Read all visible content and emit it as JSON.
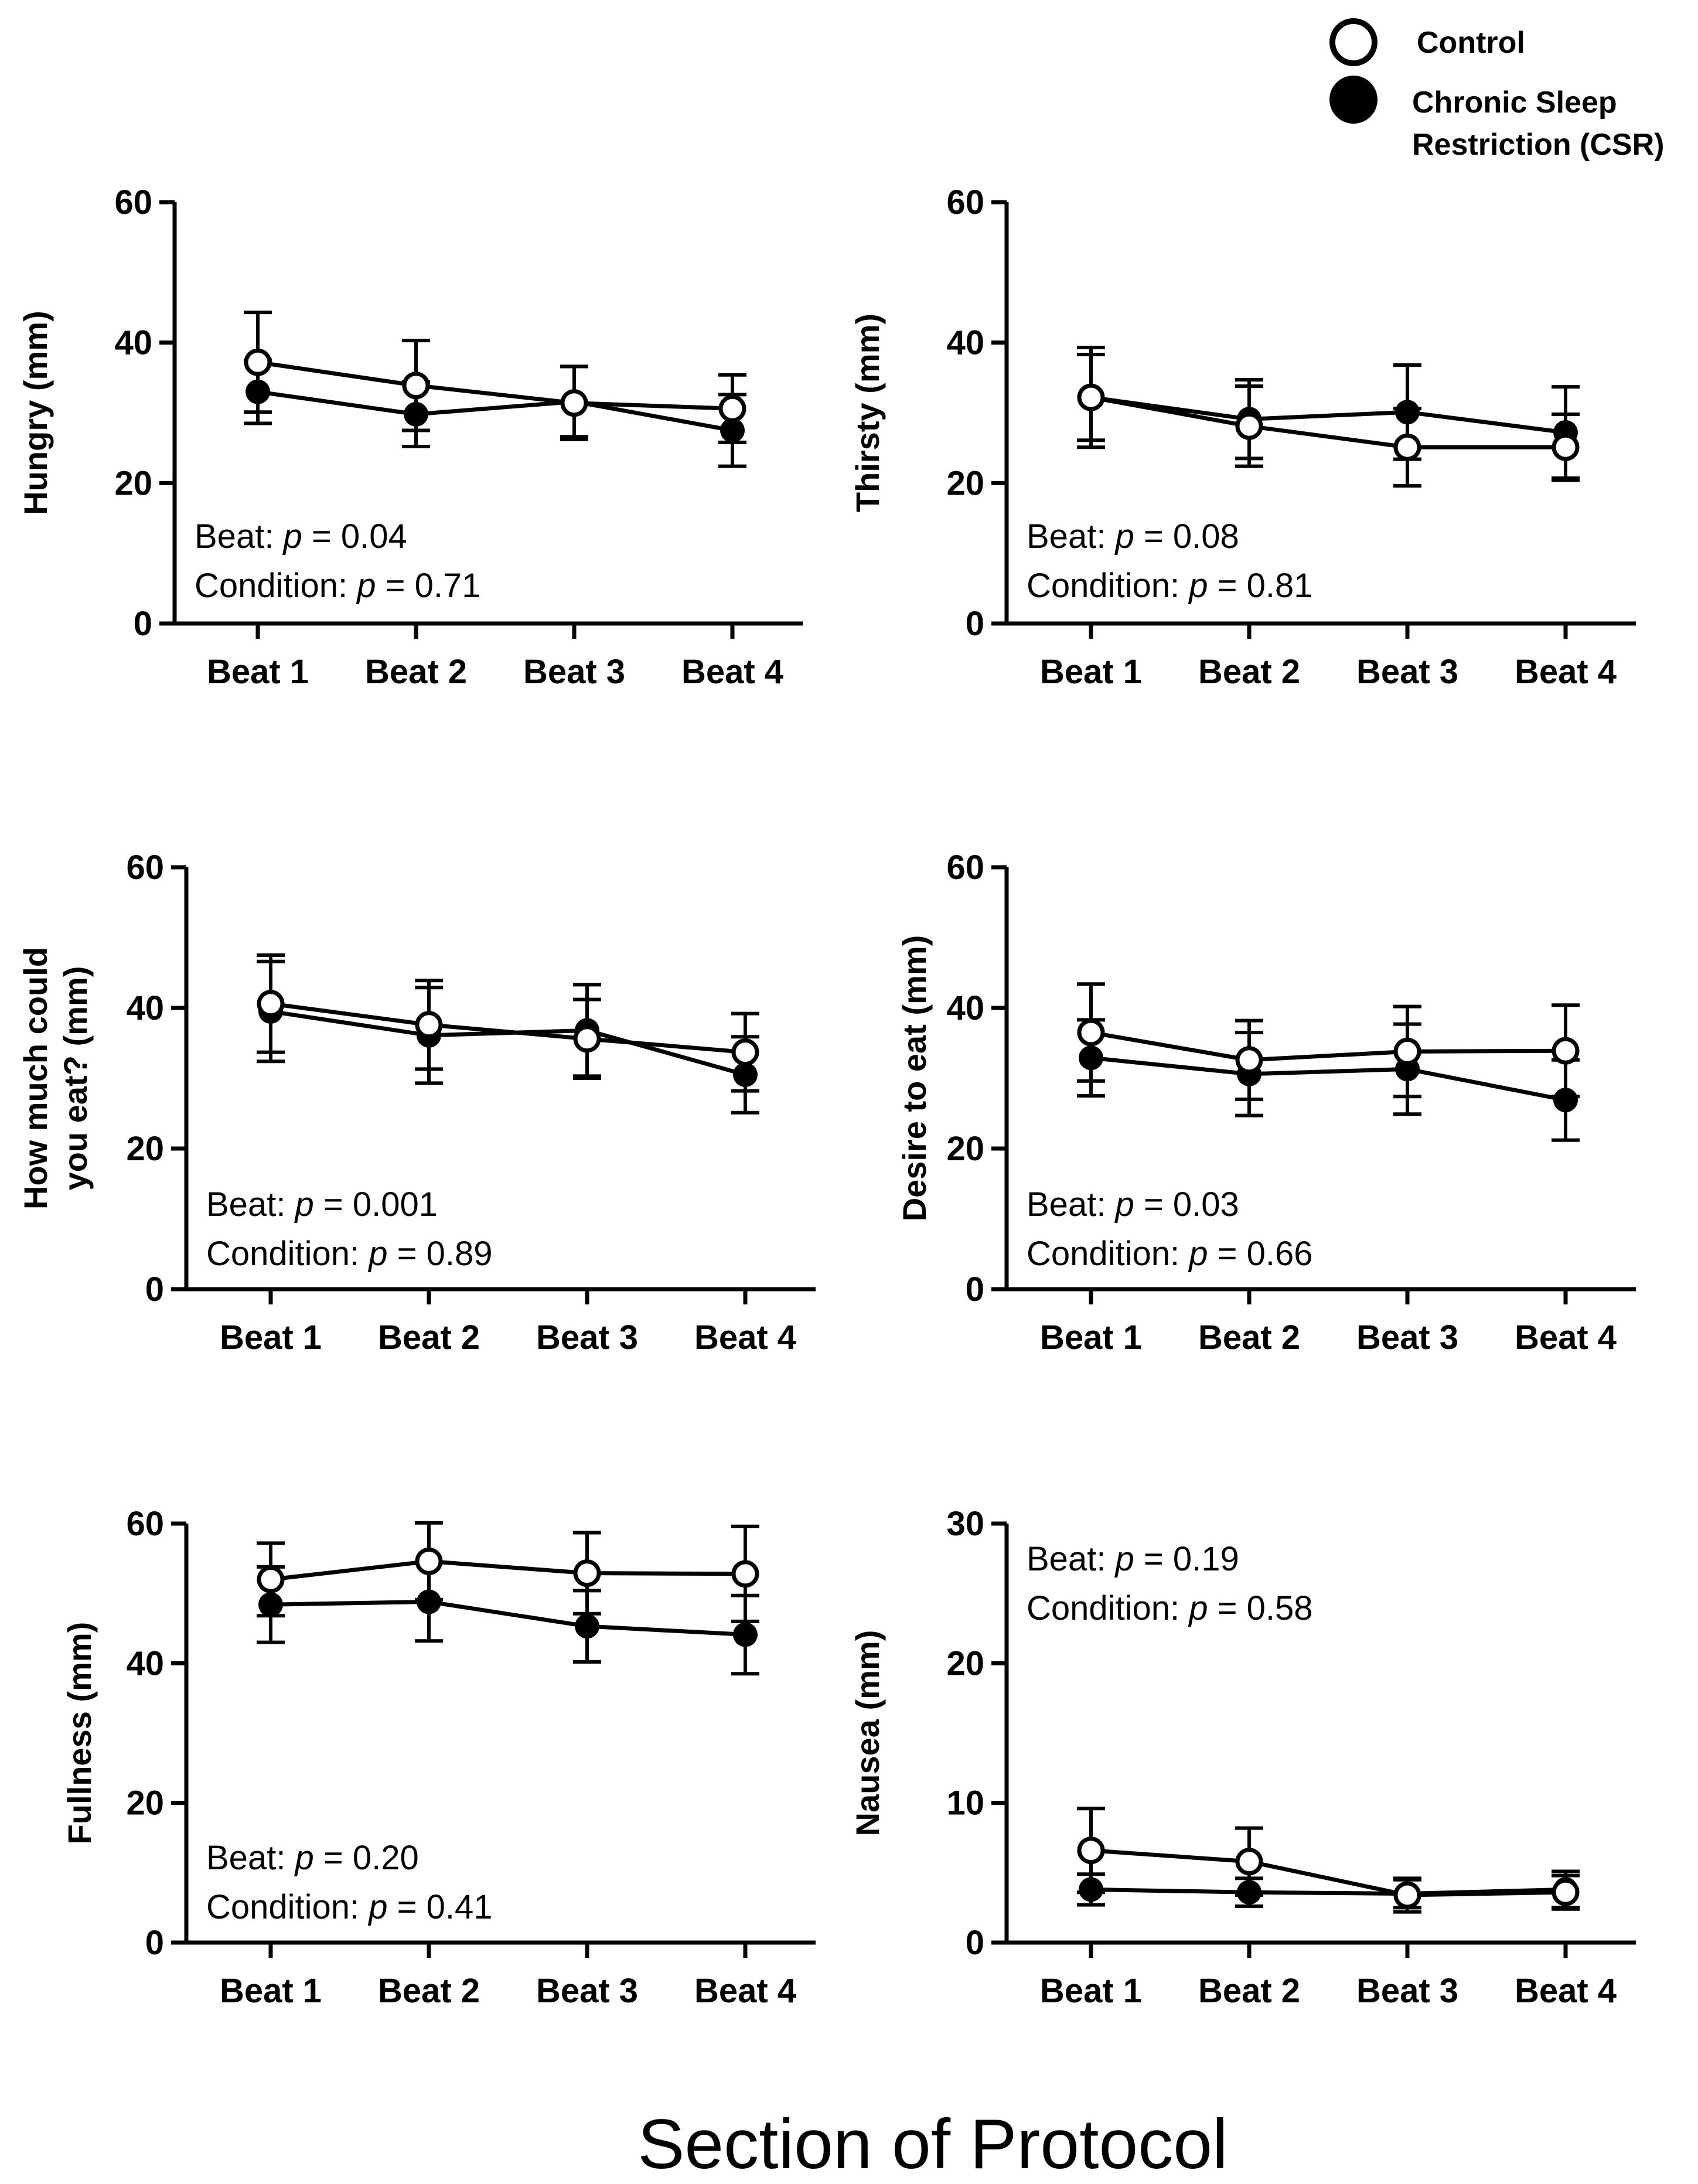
{
  "figure": {
    "xlabel": "Section of Protocol"
  },
  "legend": {
    "items": [
      {
        "label": "Control",
        "marker": "open-circle"
      },
      {
        "label": "Chronic Sleep",
        "label2": "Restriction (CSR)",
        "marker": "filled-circle"
      }
    ]
  },
  "colors": {
    "ink": "#000000",
    "background": "#ffffff"
  },
  "chart_data": [
    {
      "type": "line",
      "ylabel": "Hungry (mm)",
      "categories": [
        "Beat 1",
        "Beat 2",
        "Beat 3",
        "Beat 4"
      ],
      "ylim": [
        0,
        60
      ],
      "yticks": [
        0,
        20,
        40,
        60
      ],
      "series": [
        {
          "name": "Control",
          "values": [
            37.2,
            33.9,
            31.4,
            30.6
          ],
          "errors": [
            7.1,
            6.4,
            5.2,
            4.8
          ]
        },
        {
          "name": "Chronic Sleep Restriction (CSR)",
          "values": [
            33.0,
            29.8,
            31.6,
            27.5
          ],
          "errors": [
            4.5,
            4.6,
            5.0,
            5.1
          ]
        }
      ],
      "stats": {
        "beat_prefix": "Beat: ",
        "beat_p": "= 0.04",
        "cond_prefix": "Condition: ",
        "cond_p": "= 0.71",
        "p_symbol": "p",
        "position": "bottom-left"
      }
    },
    {
      "type": "line",
      "ylabel": "Thirsty (mm)",
      "categories": [
        "Beat 1",
        "Beat 2",
        "Beat 3",
        "Beat 4"
      ],
      "ylim": [
        0,
        60
      ],
      "yticks": [
        0,
        20,
        40,
        60
      ],
      "series": [
        {
          "name": "Control",
          "values": [
            32.2,
            28.1,
            25.1,
            25.1
          ],
          "errors": [
            7.1,
            5.7,
            5.5,
            4.7
          ]
        },
        {
          "name": "Chronic Sleep Restriction (CSR)",
          "values": [
            32.2,
            29.1,
            30.1,
            27.2
          ],
          "errors": [
            6.1,
            5.6,
            6.7,
            6.5
          ]
        }
      ],
      "stats": {
        "beat_prefix": "Beat: ",
        "beat_p": "= 0.08",
        "cond_prefix": "Condition: ",
        "cond_p": "= 0.81",
        "p_symbol": "p",
        "position": "bottom-left"
      }
    },
    {
      "type": "line",
      "ylabel": "How much could",
      "ylabel2": "you eat? (mm)",
      "categories": [
        "Beat 1",
        "Beat 2",
        "Beat 3",
        "Beat 4"
      ],
      "ylim": [
        0,
        60
      ],
      "yticks": [
        0,
        20,
        40,
        60
      ],
      "series": [
        {
          "name": "Control",
          "values": [
            40.6,
            37.6,
            35.6,
            33.7
          ],
          "errors": [
            6.9,
            6.3,
            5.6,
            5.5
          ]
        },
        {
          "name": "Chronic Sleep Restriction (CSR)",
          "values": [
            39.5,
            36.1,
            36.8,
            30.5
          ],
          "errors": [
            7.1,
            6.8,
            6.5,
            5.4
          ]
        }
      ],
      "stats": {
        "beat_prefix": "Beat: ",
        "beat_p": "= 0.001",
        "cond_prefix": "Condition: ",
        "cond_p": "= 0.89",
        "p_symbol": "p",
        "position": "bottom-left"
      }
    },
    {
      "type": "line",
      "ylabel": "Desire to eat (mm)",
      "categories": [
        "Beat 1",
        "Beat 2",
        "Beat 3",
        "Beat 4"
      ],
      "ylim": [
        0,
        60
      ],
      "yticks": [
        0,
        20,
        40,
        60
      ],
      "series": [
        {
          "name": "Control",
          "values": [
            36.5,
            32.6,
            33.8,
            33.9
          ],
          "errors": [
            6.9,
            5.6,
            6.4,
            6.5
          ]
        },
        {
          "name": "Chronic Sleep Restriction (CSR)",
          "values": [
            32.9,
            30.6,
            31.3,
            26.9
          ],
          "errors": [
            5.4,
            5.9,
            6.4,
            5.7
          ]
        }
      ],
      "stats": {
        "beat_prefix": "Beat: ",
        "beat_p": "= 0.03",
        "cond_prefix": "Condition: ",
        "cond_p": "= 0.66",
        "p_symbol": "p",
        "position": "bottom-left"
      }
    },
    {
      "type": "line",
      "ylabel": "Fullness (mm)",
      "categories": [
        "Beat 1",
        "Beat 2",
        "Beat 3",
        "Beat 4"
      ],
      "ylim": [
        0,
        60
      ],
      "yticks": [
        0,
        20,
        40,
        60
      ],
      "series": [
        {
          "name": "Control",
          "values": [
            52.0,
            54.6,
            52.9,
            52.8
          ],
          "errors": [
            5.2,
            5.5,
            5.8,
            6.8
          ]
        },
        {
          "name": "Chronic Sleep Restriction (CSR)",
          "values": [
            48.4,
            48.8,
            45.3,
            44.1
          ],
          "errors": [
            5.4,
            5.6,
            5.1,
            5.6
          ]
        }
      ],
      "stats": {
        "beat_prefix": "Beat: ",
        "beat_p": "= 0.20",
        "cond_prefix": "Condition: ",
        "cond_p": "= 0.41",
        "p_symbol": "p",
        "position": "bottom-left"
      }
    },
    {
      "type": "line",
      "ylabel": "Nausea (mm)",
      "categories": [
        "Beat 1",
        "Beat 2",
        "Beat 3",
        "Beat 4"
      ],
      "ylim": [
        0,
        30
      ],
      "yticks": [
        0,
        10,
        20,
        30
      ],
      "series": [
        {
          "name": "Control",
          "values": [
            6.6,
            5.8,
            3.4,
            3.6
          ],
          "errors": [
            3.0,
            2.4,
            1.2,
            1.2
          ]
        },
        {
          "name": "Chronic Sleep Restriction (CSR)",
          "values": [
            3.8,
            3.6,
            3.5,
            3.8
          ],
          "errors": [
            1.1,
            1.0,
            1.0,
            1.3
          ]
        }
      ],
      "stats": {
        "beat_prefix": "Beat: ",
        "beat_p": "= 0.19",
        "cond_prefix": "Condition: ",
        "cond_p": "= 0.58",
        "p_symbol": "p",
        "position": "top-left"
      }
    }
  ]
}
